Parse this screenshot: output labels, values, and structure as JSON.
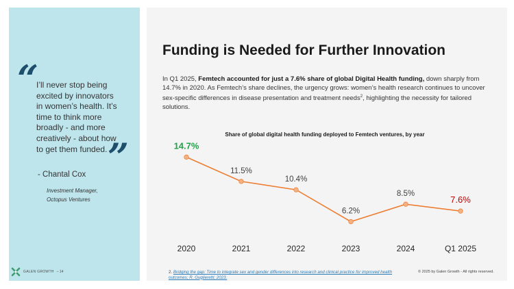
{
  "quote": {
    "open_mark": "“",
    "close_mark": "”",
    "text": "I’ll never stop being excited by innovators in women’s health. It’s time to think more broadly - and more creatively - about how to get them funded.",
    "author": "- Chantal Cox",
    "role_line1": "Investment Manager,",
    "role_line2": "Octopus Ventures"
  },
  "logo": {
    "icon": "galen-growth-logo-icon",
    "name": "GALEN GROWTH",
    "page": "– 14"
  },
  "title": "Funding is Needed for Further Innovation",
  "intro": {
    "lead": "In Q1 2025,",
    "bold": "Femtech accounted for just a 7.6% share of global Digital Health funding,",
    "rest": "down sharply from 14.7% in 2020. As Femtech’s share declines, the urgency grows: women’s health research continues to uncover sex-specific differences in disease presentation and treatment needs",
    "sup": "2",
    "end": ", highlighting the necessity for tailored solutions."
  },
  "chart_data": {
    "type": "line",
    "title": "Share of global digital health funding deployed to Femtech ventures, by year",
    "categories": [
      "2020",
      "2021",
      "2022",
      "2023",
      "2024",
      "Q1 2025"
    ],
    "values": [
      14.7,
      11.5,
      10.4,
      6.2,
      8.5,
      7.6
    ],
    "labels": [
      "14.7%",
      "11.5%",
      "10.4%",
      "6.2%",
      "8.5%",
      "7.6%"
    ],
    "xlabel": "",
    "ylabel": "",
    "ylim": [
      5,
      16
    ],
    "grid": false,
    "legend": "none",
    "colors": {
      "line": "#ed7d31",
      "marker_fill": "#f4b183",
      "label_default": "#404040",
      "label_first": "#21a34a",
      "label_last": "#c00000"
    }
  },
  "footnote": {
    "number": "2.",
    "link_text": "Bridging the gap: Time to integrate sex and gender differences into research and clinical practice for improved health outcomes; R. Guglieretti; 2023."
  },
  "copyright": "© 2025 by Galen Growth - All rights reserved."
}
